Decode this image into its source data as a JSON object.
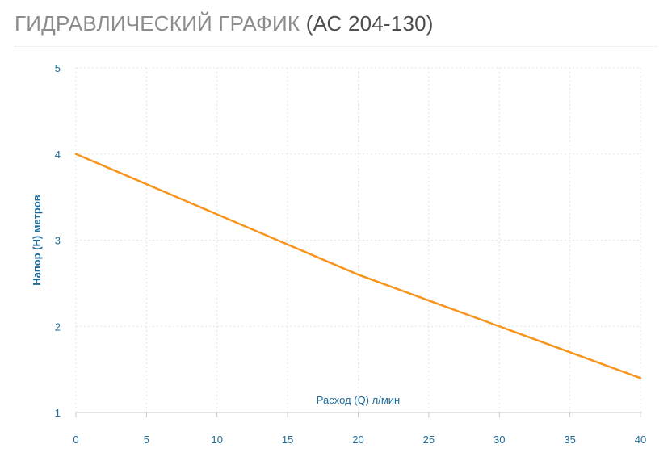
{
  "header": {
    "title_main": "ГИДРАВЛИЧЕСКИЙ ГРАФИК",
    "title_model": "(АС 204-130)"
  },
  "colors": {
    "line": "#f7941d",
    "axis_text": "#1f6d99",
    "grid": "#e3e3e3",
    "axis_line": "#c9c9c9"
  },
  "chart_data": {
    "type": "line",
    "xlabel": "Расход (Q) л/мин",
    "ylabel": "Напор (H) метров",
    "xlim": [
      0,
      40
    ],
    "ylim": [
      1,
      5
    ],
    "xticks": [
      0,
      5,
      10,
      15,
      20,
      25,
      30,
      35,
      40
    ],
    "yticks": [
      1,
      2,
      3,
      4,
      5
    ],
    "grid": true,
    "series": [
      {
        "x": [
          0,
          5,
          10,
          15,
          20,
          25,
          30,
          35,
          40
        ],
        "y": [
          4.0,
          3.65,
          3.3,
          2.95,
          2.6,
          2.3,
          2.0,
          1.7,
          1.4
        ]
      }
    ]
  }
}
